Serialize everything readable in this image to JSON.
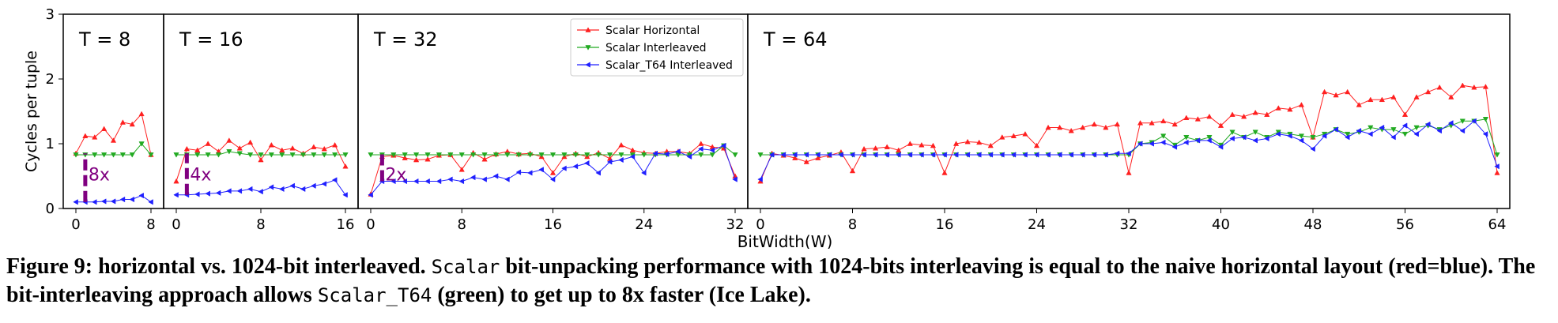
{
  "chart_data": {
    "type": "line",
    "ylabel": "Cycles per tuple",
    "xlabel": "BitWidth(W)",
    "ylim": [
      0,
      3
    ],
    "yticks": [
      "0",
      "1",
      "2",
      "3"
    ],
    "grid": false,
    "legend_position": "top-right of T = 32 panel",
    "legend": [
      {
        "name": "Scalar Horizontal",
        "color": "#ff2020",
        "marker": "triangle-up"
      },
      {
        "name": "Scalar Interleaved",
        "color": "#22aa22",
        "marker": "triangle-down"
      },
      {
        "name": "Scalar_T64 Interleaved",
        "color": "#2020ff",
        "marker": "triangle-left"
      }
    ],
    "panels": [
      {
        "title": "T = 8",
        "xlim": [
          0,
          8
        ],
        "xticks": [
          0,
          8
        ],
        "annotation": {
          "text": "8x",
          "x": 1,
          "y_low": 0.1,
          "y_high": 0.85
        },
        "series": [
          {
            "name": "Scalar Horizontal",
            "values": [
              0.85,
              1.12,
              1.1,
              1.23,
              1.05,
              1.33,
              1.3,
              1.46,
              0.83
            ]
          },
          {
            "name": "Scalar Interleaved",
            "values": [
              0.83,
              0.83,
              0.83,
              0.83,
              0.83,
              0.83,
              0.83,
              1.0,
              0.83
            ]
          },
          {
            "name": "Scalar_T64 Interleaved",
            "values": [
              0.1,
              0.1,
              0.1,
              0.11,
              0.11,
              0.14,
              0.14,
              0.2,
              0.1
            ]
          }
        ]
      },
      {
        "title": "T = 16",
        "xlim": [
          0,
          16
        ],
        "xticks": [
          0,
          8,
          16
        ],
        "annotation": {
          "text": "4x",
          "x": 1,
          "y_low": 0.21,
          "y_high": 0.85
        },
        "series": [
          {
            "name": "Scalar Horizontal",
            "values": [
              0.42,
              0.92,
              0.9,
              1.0,
              0.88,
              1.05,
              0.93,
              1.02,
              0.75,
              0.98,
              0.9,
              0.93,
              0.85,
              0.95,
              0.92,
              0.98,
              0.65
            ]
          },
          {
            "name": "Scalar Interleaved",
            "values": [
              0.83,
              0.83,
              0.83,
              0.83,
              0.83,
              0.88,
              0.85,
              0.83,
              0.83,
              0.83,
              0.83,
              0.83,
              0.83,
              0.83,
              0.83,
              0.83,
              0.83
            ]
          },
          {
            "name": "Scalar_T64 Interleaved",
            "values": [
              0.21,
              0.21,
              0.22,
              0.23,
              0.24,
              0.27,
              0.27,
              0.3,
              0.26,
              0.33,
              0.3,
              0.35,
              0.3,
              0.35,
              0.38,
              0.44,
              0.21
            ]
          }
        ]
      },
      {
        "title": "T = 32",
        "xlim": [
          0,
          32
        ],
        "xticks": [
          0,
          8,
          16,
          24,
          32
        ],
        "annotation": {
          "text": "2x",
          "x": 1,
          "y_low": 0.42,
          "y_high": 0.85
        },
        "series": [
          {
            "name": "Scalar Horizontal",
            "values": [
              0.22,
              0.8,
              0.82,
              0.78,
              0.75,
              0.76,
              0.82,
              0.83,
              0.6,
              0.86,
              0.76,
              0.84,
              0.88,
              0.84,
              0.85,
              0.8,
              0.55,
              0.8,
              0.85,
              0.8,
              0.86,
              0.77,
              0.98,
              0.9,
              0.86,
              0.85,
              0.88,
              0.88,
              0.85,
              1.0,
              0.95,
              0.93,
              0.5
            ]
          },
          {
            "name": "Scalar Interleaved",
            "values": [
              0.83,
              0.83,
              0.83,
              0.83,
              0.83,
              0.83,
              0.83,
              0.83,
              0.83,
              0.83,
              0.83,
              0.83,
              0.83,
              0.83,
              0.83,
              0.83,
              0.83,
              0.83,
              0.83,
              0.83,
              0.83,
              0.83,
              0.83,
              0.83,
              0.83,
              0.83,
              0.83,
              0.83,
              0.83,
              0.83,
              0.83,
              0.97,
              0.83
            ]
          },
          {
            "name": "Scalar_T64 Interleaved",
            "values": [
              0.21,
              0.42,
              0.42,
              0.42,
              0.42,
              0.42,
              0.42,
              0.45,
              0.42,
              0.48,
              0.45,
              0.5,
              0.45,
              0.56,
              0.55,
              0.6,
              0.45,
              0.62,
              0.65,
              0.7,
              0.55,
              0.72,
              0.75,
              0.8,
              0.55,
              0.85,
              0.84,
              0.88,
              0.8,
              0.92,
              0.9,
              0.97,
              0.45
            ]
          }
        ]
      },
      {
        "title": "T = 64",
        "xlim": [
          0,
          64
        ],
        "xticks": [
          0,
          8,
          16,
          24,
          32,
          40,
          48,
          56,
          64
        ],
        "series": [
          {
            "name": "Scalar Horizontal",
            "values": [
              0.42,
              0.85,
              0.82,
              0.78,
              0.72,
              0.78,
              0.82,
              0.87,
              0.58,
              0.92,
              0.93,
              0.95,
              0.9,
              1.0,
              0.98,
              0.97,
              0.55,
              1.0,
              1.03,
              1.02,
              0.97,
              1.1,
              1.12,
              1.15,
              0.97,
              1.25,
              1.25,
              1.2,
              1.25,
              1.3,
              1.25,
              1.3,
              0.55,
              1.32,
              1.32,
              1.35,
              1.3,
              1.4,
              1.38,
              1.42,
              1.28,
              1.45,
              1.42,
              1.48,
              1.45,
              1.55,
              1.53,
              1.6,
              1.1,
              1.8,
              1.75,
              1.8,
              1.6,
              1.68,
              1.68,
              1.72,
              1.45,
              1.72,
              1.8,
              1.87,
              1.72,
              1.9,
              1.87,
              1.88,
              0.55
            ]
          },
          {
            "name": "Scalar Interleaved",
            "values": [
              0.83,
              0.83,
              0.83,
              0.83,
              0.83,
              0.83,
              0.83,
              0.83,
              0.83,
              0.83,
              0.83,
              0.83,
              0.83,
              0.83,
              0.83,
              0.83,
              0.83,
              0.83,
              0.83,
              0.83,
              0.83,
              0.83,
              0.83,
              0.83,
              0.83,
              0.83,
              0.83,
              0.83,
              0.83,
              0.83,
              0.83,
              0.83,
              0.83,
              1.0,
              1.02,
              1.12,
              0.98,
              1.1,
              1.05,
              1.1,
              0.98,
              1.18,
              1.1,
              1.18,
              1.1,
              1.18,
              1.15,
              1.12,
              1.1,
              1.15,
              1.22,
              1.15,
              1.18,
              1.25,
              1.22,
              1.22,
              1.15,
              1.25,
              1.28,
              1.22,
              1.28,
              1.35,
              1.35,
              1.38,
              0.83
            ]
          },
          {
            "name": "Scalar_T64 Interleaved",
            "values": [
              0.45,
              0.83,
              0.83,
              0.83,
              0.83,
              0.83,
              0.83,
              0.83,
              0.83,
              0.83,
              0.83,
              0.83,
              0.83,
              0.83,
              0.83,
              0.83,
              0.83,
              0.83,
              0.83,
              0.83,
              0.83,
              0.83,
              0.83,
              0.83,
              0.83,
              0.83,
              0.83,
              0.83,
              0.83,
              0.83,
              0.83,
              0.85,
              0.85,
              1.0,
              1.0,
              1.02,
              0.95,
              1.02,
              1.05,
              1.05,
              0.95,
              1.08,
              1.1,
              1.05,
              1.08,
              1.15,
              1.12,
              1.05,
              0.92,
              1.12,
              1.22,
              1.1,
              1.2,
              1.15,
              1.25,
              1.1,
              1.28,
              1.15,
              1.3,
              1.2,
              1.32,
              1.2,
              1.35,
              1.15,
              0.65
            ]
          }
        ]
      }
    ]
  },
  "caption": {
    "figure_label": "Figure 9: horizontal vs. 1024-bit interleaved.",
    "part1_code": "Scalar",
    "part2": " bit-unpacking performance with 1024-bits interleaving is equal to the naive horizontal layout (red=blue). The bit-interleaving approach allows ",
    "part3_code": "Scalar_T64",
    "part4": " (green) to get up to 8x faster (Ice Lake)."
  }
}
